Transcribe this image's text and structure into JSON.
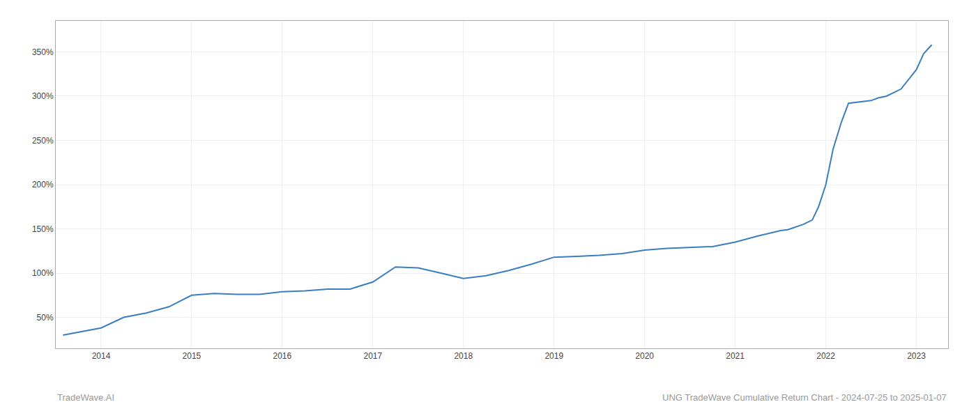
{
  "chart_data": {
    "type": "line",
    "color": "#3a7ebf",
    "x": [
      2013.58,
      2013.75,
      2014.0,
      2014.25,
      2014.5,
      2014.75,
      2015.0,
      2015.25,
      2015.5,
      2015.75,
      2016.0,
      2016.25,
      2016.5,
      2016.75,
      2017.0,
      2017.25,
      2017.5,
      2017.75,
      2018.0,
      2018.25,
      2018.5,
      2018.75,
      2019.0,
      2019.25,
      2019.5,
      2019.75,
      2020.0,
      2020.25,
      2020.5,
      2020.75,
      2021.0,
      2021.25,
      2021.5,
      2021.58,
      2021.75,
      2021.85,
      2021.92,
      2022.0,
      2022.08,
      2022.17,
      2022.25,
      2022.5,
      2022.58,
      2022.67,
      2022.83,
      2023.0,
      2023.08,
      2023.17
    ],
    "values": [
      30,
      33,
      38,
      50,
      55,
      62,
      75,
      77,
      76,
      76,
      79,
      80,
      82,
      82,
      90,
      107,
      106,
      100,
      94,
      97,
      103,
      110,
      118,
      119,
      120,
      122,
      126,
      128,
      129,
      130,
      135,
      142,
      148,
      149,
      155,
      160,
      175,
      200,
      240,
      270,
      292,
      295,
      298,
      300,
      308,
      330,
      348,
      358
    ],
    "xlim": [
      2013.5,
      2023.35
    ],
    "xticks": [
      2014,
      2015,
      2016,
      2017,
      2018,
      2019,
      2020,
      2021,
      2022,
      2023
    ],
    "ylim": [
      15,
      385
    ],
    "yticks": [
      {
        "value": 50,
        "label": "50%"
      },
      {
        "value": 100,
        "label": "100%"
      },
      {
        "value": 150,
        "label": "150%"
      },
      {
        "value": 200,
        "label": "200%"
      },
      {
        "value": 250,
        "label": "250%"
      },
      {
        "value": 300,
        "label": "300%"
      },
      {
        "value": 350,
        "label": "350%"
      }
    ],
    "grid": true,
    "annotations": [
      "TradeWave.AI",
      "UNG TradeWave Cumulative Return Chart - 2024-07-25 to 2025-01-07"
    ]
  }
}
